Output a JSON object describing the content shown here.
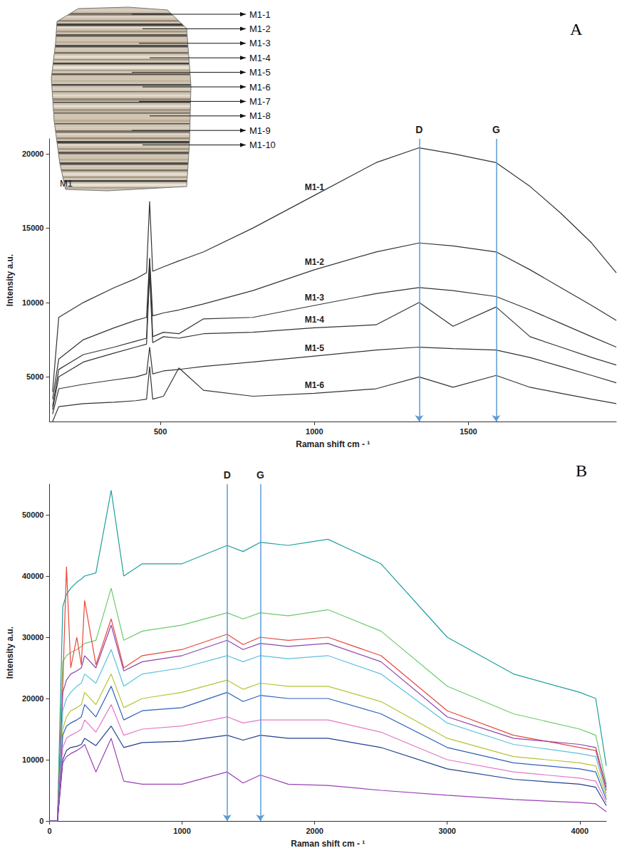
{
  "chart_data": [
    {
      "panel": "A",
      "type": "line",
      "grid": false,
      "x_label": "Raman shift cm - ¹",
      "y_label": "Intensity a.u.",
      "xlim": [
        140,
        1980
      ],
      "xticks": [
        500,
        1000,
        1500
      ],
      "ylim": [
        2000,
        21000
      ],
      "yticks": [
        5000,
        10000,
        15000,
        20000
      ],
      "x": [
        150,
        170,
        250,
        350,
        420,
        455,
        465,
        475,
        510,
        560,
        640,
        800,
        1000,
        1200,
        1340,
        1450,
        1590,
        1700,
        1800,
        1900,
        1980
      ],
      "series": [
        {
          "name": "M1-1",
          "color": "#333333",
          "values": [
            4000,
            9000,
            10000,
            11000,
            11600,
            12000,
            16800,
            12100,
            12400,
            12800,
            13400,
            15000,
            17200,
            19400,
            20400,
            20000,
            19400,
            17800,
            16000,
            14000,
            12000
          ]
        },
        {
          "name": "M1-2",
          "color": "#333333",
          "values": [
            3500,
            6200,
            7500,
            8300,
            8800,
            9000,
            13000,
            9100,
            9300,
            9500,
            9900,
            10800,
            12200,
            13400,
            14000,
            13800,
            13400,
            12200,
            11000,
            9800,
            8800
          ]
        },
        {
          "name": "M1-3",
          "color": "#333333",
          "values": [
            3000,
            5500,
            6500,
            7000,
            7400,
            7600,
            12900,
            7700,
            8000,
            7900,
            8900,
            9000,
            9800,
            10600,
            11000,
            10800,
            10400,
            9500,
            8600,
            7700,
            7000
          ]
        },
        {
          "name": "M1-4",
          "color": "#333333",
          "values": [
            2800,
            5000,
            6000,
            6600,
            7000,
            7200,
            12000,
            7300,
            7700,
            7600,
            7900,
            8000,
            8300,
            8500,
            10000,
            8400,
            9700,
            7700,
            7000,
            6300,
            5800
          ]
        },
        {
          "name": "M1-5",
          "color": "#333333",
          "values": [
            2500,
            4200,
            4500,
            4800,
            5000,
            5200,
            7000,
            5200,
            5400,
            5500,
            5700,
            6000,
            6400,
            6800,
            7000,
            6900,
            6800,
            6300,
            5700,
            5100,
            4600
          ]
        },
        {
          "name": "M1-6",
          "color": "#333333",
          "values": [
            2000,
            3000,
            3200,
            3300,
            3400,
            3500,
            5700,
            3500,
            3700,
            5600,
            4100,
            3700,
            3900,
            4200,
            5000,
            4300,
            5100,
            4300,
            3900,
            3500,
            3200
          ]
        }
      ],
      "annotations": [
        {
          "text": "D",
          "x": 1340
        },
        {
          "text": "G",
          "x": 1590
        }
      ],
      "inset": {
        "title": "M1",
        "labels": [
          "M1-1",
          "M1-2",
          "M1-3",
          "M1-4",
          "M1-5",
          "M1-6",
          "M1-7",
          "M1-8",
          "M1-9",
          "M1-10"
        ]
      }
    },
    {
      "panel": "B",
      "type": "line",
      "grid": false,
      "x_label": "Raman shift cm - ¹",
      "y_label": "Intensity a.u.",
      "xlim": [
        0,
        4200
      ],
      "xticks": [
        0,
        1000,
        2000,
        3000,
        4000
      ],
      "ylim": [
        0,
        55000
      ],
      "yticks": [
        0,
        10000,
        20000,
        30000,
        40000,
        50000
      ],
      "x": [
        0,
        60,
        100,
        128,
        160,
        206,
        240,
        265,
        350,
        465,
        560,
        700,
        1000,
        1340,
        1460,
        1590,
        1800,
        2100,
        2500,
        3000,
        3500,
        4000,
        4120,
        4200
      ],
      "series": [
        {
          "color": "#1f9e9e",
          "values": [
            0,
            0,
            35000,
            37000,
            38000,
            39000,
            39500,
            40000,
            40500,
            54000,
            40000,
            42000,
            42000,
            45000,
            44000,
            45500,
            45000,
            46000,
            42000,
            30000,
            24000,
            21000,
            20000,
            9000
          ]
        },
        {
          "color": "#6cc96c",
          "values": [
            0,
            0,
            26000,
            27000,
            27500,
            28000,
            28500,
            29000,
            29500,
            38000,
            29500,
            31000,
            32000,
            34000,
            33000,
            34000,
            33500,
            34500,
            31000,
            22000,
            17500,
            15000,
            14000,
            6000
          ]
        },
        {
          "color": "#e8473c",
          "values": [
            0,
            0,
            22000,
            41500,
            25000,
            30000,
            25500,
            36000,
            25500,
            33000,
            25000,
            27000,
            28000,
            30500,
            28800,
            30000,
            29500,
            30000,
            27000,
            18000,
            14000,
            12000,
            11500,
            5000
          ]
        },
        {
          "color": "#8e44ad",
          "values": [
            0,
            0,
            21000,
            23000,
            24000,
            24500,
            25000,
            27000,
            25000,
            32000,
            24500,
            26000,
            27000,
            29500,
            28000,
            29000,
            28500,
            29000,
            26000,
            17000,
            13500,
            12500,
            12000,
            5500
          ]
        },
        {
          "color": "#5bc0de",
          "values": [
            0,
            0,
            18000,
            20000,
            21000,
            22000,
            22500,
            24000,
            22500,
            28000,
            22000,
            24000,
            25000,
            27000,
            26000,
            27000,
            26500,
            27000,
            24000,
            16000,
            12500,
            11000,
            10500,
            4500
          ]
        },
        {
          "color": "#b5c334",
          "values": [
            0,
            0,
            15000,
            17000,
            18000,
            18500,
            19000,
            21000,
            19000,
            24000,
            18500,
            20000,
            21000,
            23000,
            21500,
            22500,
            22000,
            22000,
            19500,
            13500,
            10500,
            9500,
            9000,
            4000
          ]
        },
        {
          "color": "#2e5fb8",
          "values": [
            0,
            0,
            14000,
            15500,
            16000,
            16500,
            17000,
            19000,
            17000,
            22000,
            16500,
            18000,
            18500,
            21000,
            19500,
            20500,
            20000,
            20000,
            17500,
            12000,
            9500,
            8500,
            8000,
            3500
          ]
        },
        {
          "color": "#e377c2",
          "values": [
            0,
            0,
            12000,
            13500,
            14000,
            14500,
            15000,
            16500,
            14500,
            19000,
            14000,
            15000,
            15500,
            17000,
            16000,
            16500,
            16500,
            16500,
            14500,
            10000,
            8000,
            7000,
            6500,
            3000
          ]
        },
        {
          "color": "#1f3f8f",
          "values": [
            0,
            0,
            10000,
            11500,
            12000,
            12200,
            12500,
            13500,
            12300,
            15500,
            12000,
            12800,
            13000,
            14000,
            13200,
            14000,
            13500,
            13500,
            12000,
            8500,
            6800,
            6000,
            5500,
            2500
          ]
        },
        {
          "color": "#9b3fb5",
          "values": [
            0,
            0,
            9500,
            10500,
            11000,
            11500,
            12000,
            12500,
            8000,
            13500,
            6500,
            6000,
            6000,
            8000,
            6200,
            7500,
            6000,
            5800,
            5000,
            4200,
            3500,
            3000,
            2800,
            1500
          ]
        }
      ],
      "annotations": [
        {
          "text": "D",
          "x": 1340
        },
        {
          "text": "G",
          "x": 1590
        }
      ]
    }
  ]
}
